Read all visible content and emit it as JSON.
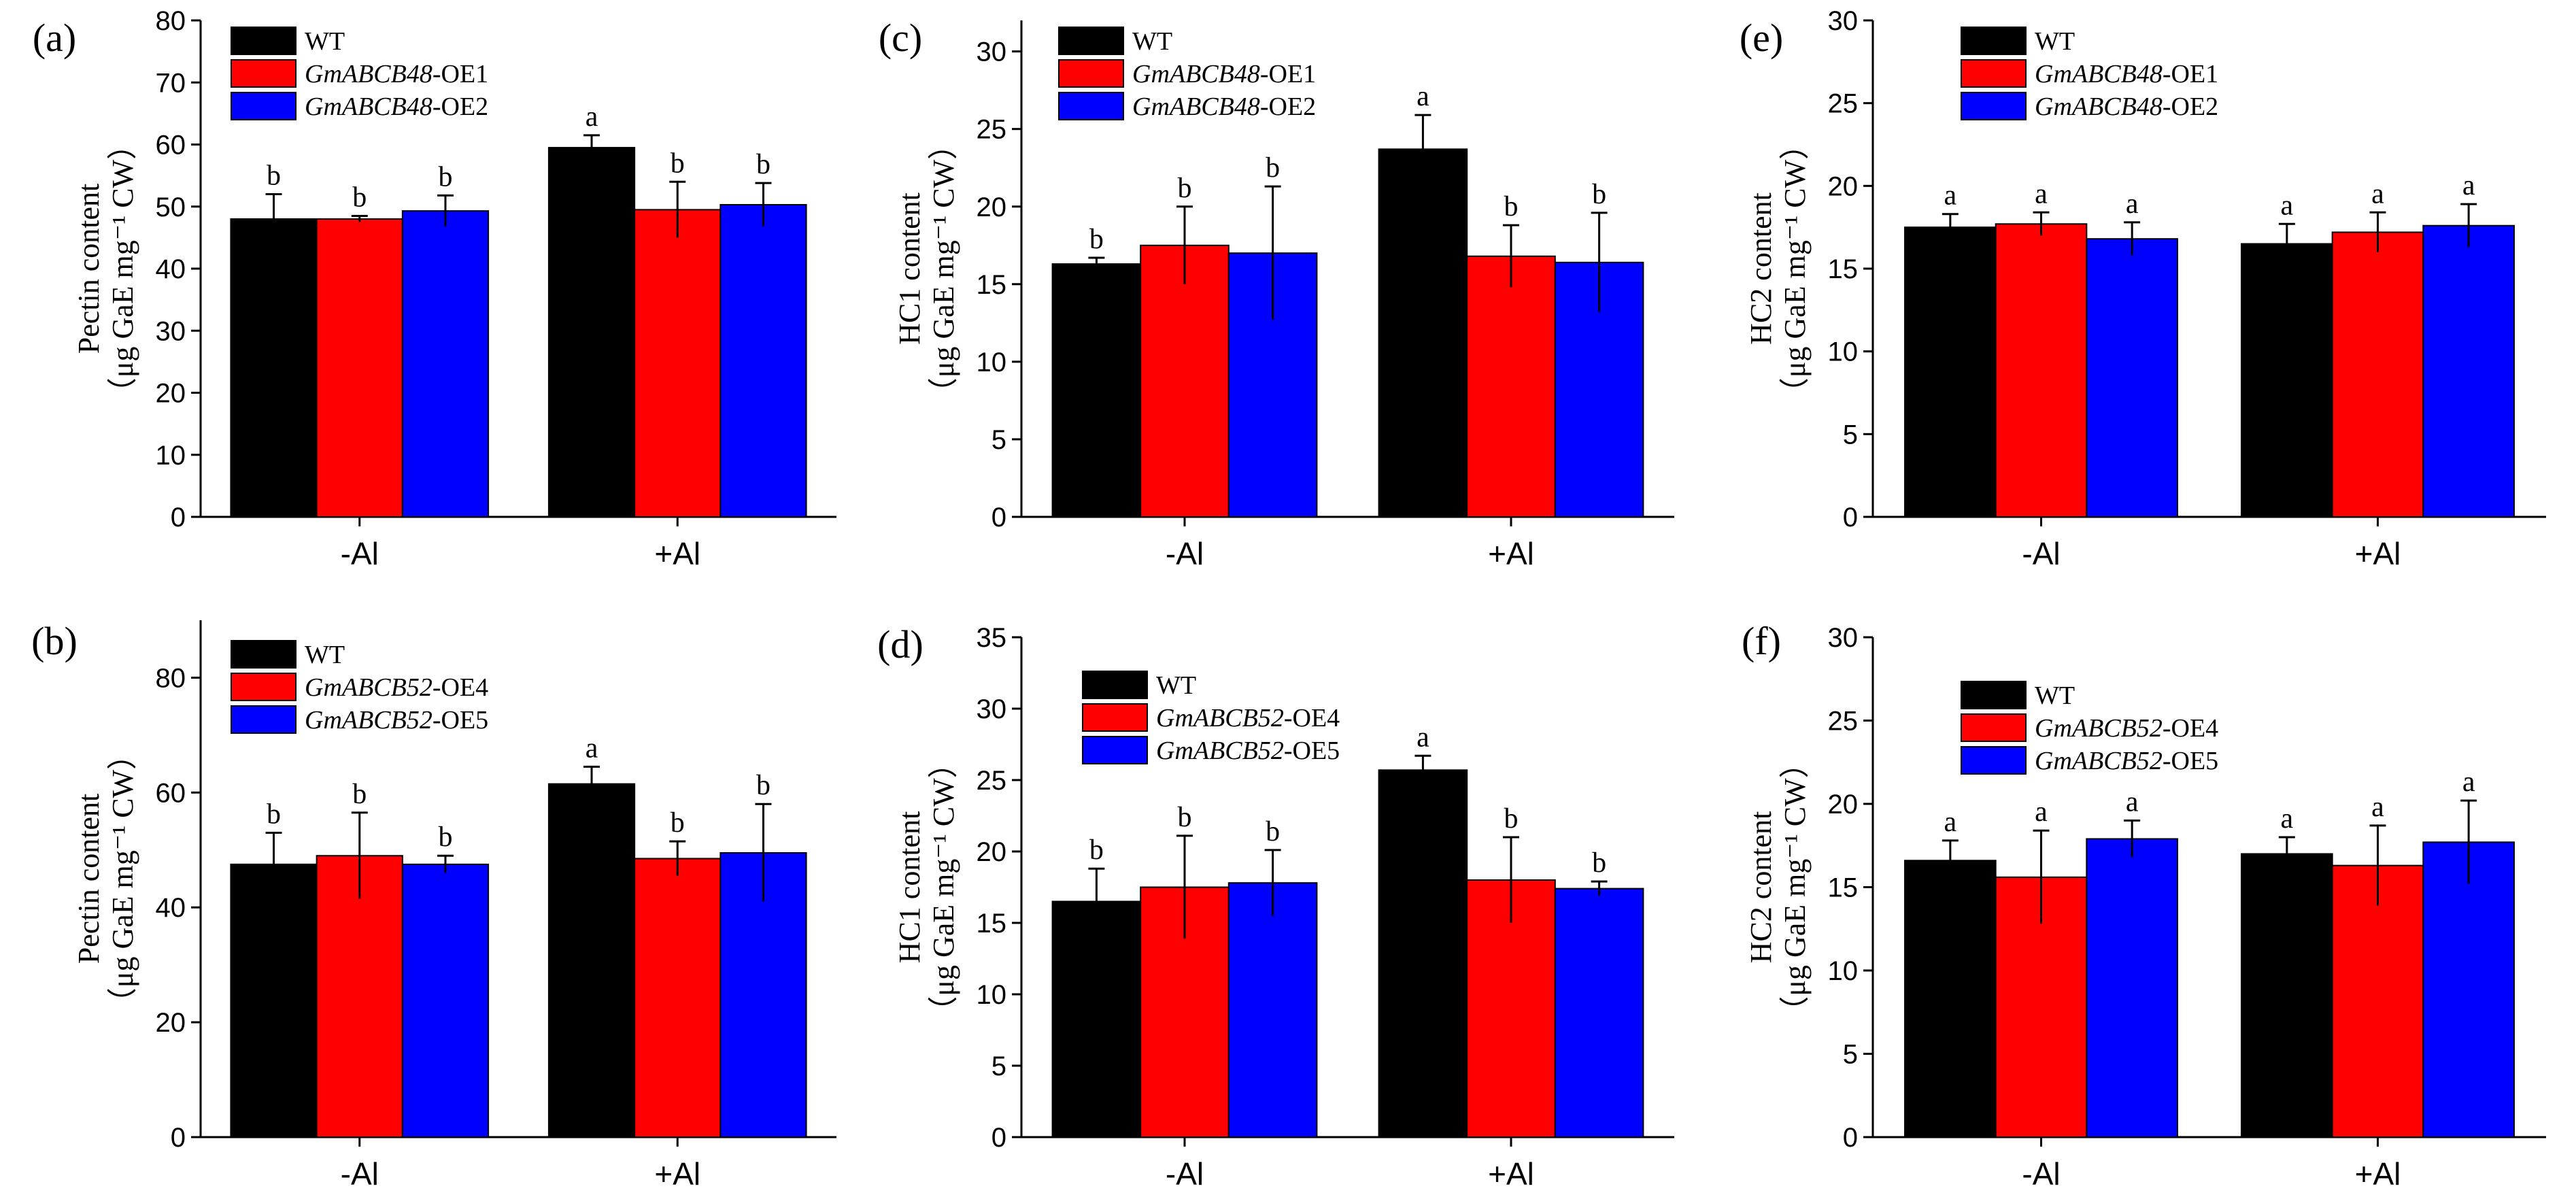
{
  "colors": {
    "WT": "#000000",
    "OE_a": "#ff0000",
    "OE_b": "#0000ff"
  },
  "chart_data": [
    {
      "id": "a",
      "panel_label": "(a)",
      "type": "bar",
      "ylabel_line1": "Pectin content",
      "ylabel_line2": "（μg GaE mg⁻¹ CW）",
      "ylim": [
        0,
        80
      ],
      "yticks": [
        0,
        10,
        20,
        30,
        40,
        50,
        60,
        70,
        80
      ],
      "categories": [
        "-Al",
        "+Al"
      ],
      "series": [
        {
          "name": "WT",
          "gene": "",
          "suffix": "WT",
          "values": [
            48,
            59.5
          ],
          "errors": [
            4,
            2
          ],
          "letters": [
            "b",
            "a"
          ]
        },
        {
          "name": "GmABCB48-OE1",
          "gene": "GmABCB48",
          "suffix": "-OE1",
          "values": [
            48,
            49.5
          ],
          "errors": [
            0.5,
            4.5
          ],
          "letters": [
            "b",
            "b"
          ]
        },
        {
          "name": "GmABCB48-OE2",
          "gene": "GmABCB48",
          "suffix": "-OE2",
          "values": [
            49.3,
            50.3
          ],
          "errors": [
            2.5,
            3.5
          ],
          "letters": [
            "b",
            "b"
          ]
        }
      ]
    },
    {
      "id": "c",
      "panel_label": "(c)",
      "type": "bar",
      "ylabel_line1": "HC1 content",
      "ylabel_line2": "（μg GaE mg⁻¹ CW）",
      "ylim": [
        0,
        32
      ],
      "yticks": [
        0,
        5,
        10,
        15,
        20,
        25,
        30
      ],
      "categories": [
        "-Al",
        "+Al"
      ],
      "series": [
        {
          "name": "WT",
          "gene": "",
          "suffix": "WT",
          "values": [
            16.3,
            23.7
          ],
          "errors": [
            0.4,
            2.2
          ],
          "letters": [
            "b",
            "a"
          ]
        },
        {
          "name": "GmABCB48-OE1",
          "gene": "GmABCB48",
          "suffix": "-OE1",
          "values": [
            17.5,
            16.8
          ],
          "errors": [
            2.5,
            2
          ],
          "letters": [
            "b",
            "b"
          ]
        },
        {
          "name": "GmABCB48-OE2",
          "gene": "GmABCB48",
          "suffix": "-OE2",
          "values": [
            17,
            16.4
          ],
          "errors": [
            4.3,
            3.2
          ],
          "letters": [
            "b",
            "b"
          ]
        }
      ]
    },
    {
      "id": "e",
      "panel_label": "(e)",
      "type": "bar",
      "ylabel_line1": "HC2 content",
      "ylabel_line2": "（μg GaE mg⁻¹ CW）",
      "ylim": [
        0,
        30
      ],
      "yticks": [
        0,
        5,
        10,
        15,
        20,
        25,
        30
      ],
      "categories": [
        "-Al",
        "+Al"
      ],
      "series": [
        {
          "name": "WT",
          "gene": "",
          "suffix": "WT",
          "values": [
            17.5,
            16.5
          ],
          "errors": [
            0.8,
            1.2
          ],
          "letters": [
            "a",
            "a"
          ]
        },
        {
          "name": "GmABCB48-OE1",
          "gene": "GmABCB48",
          "suffix": "-OE1",
          "values": [
            17.7,
            17.2
          ],
          "errors": [
            0.7,
            1.2
          ],
          "letters": [
            "a",
            "a"
          ]
        },
        {
          "name": "GmABCB48-OE2",
          "gene": "GmABCB48",
          "suffix": "-OE2",
          "values": [
            16.8,
            17.6
          ],
          "errors": [
            1,
            1.3
          ],
          "letters": [
            "a",
            "a"
          ]
        }
      ]
    },
    {
      "id": "b",
      "panel_label": "(b)",
      "type": "bar",
      "ylabel_line1": "Pectin content",
      "ylabel_line2": "（μg GaE mg⁻¹ CW）",
      "ylim": [
        0,
        90
      ],
      "yticks": [
        0,
        20,
        40,
        60,
        80
      ],
      "categories": [
        "-Al",
        "+Al"
      ],
      "series": [
        {
          "name": "WT",
          "gene": "",
          "suffix": "WT",
          "values": [
            47.5,
            61.5
          ],
          "errors": [
            5.5,
            3
          ],
          "letters": [
            "b",
            "a"
          ]
        },
        {
          "name": "GmABCB52-OE4",
          "gene": "GmABCB52",
          "suffix": "-OE4",
          "values": [
            49,
            48.5
          ],
          "errors": [
            7.5,
            3
          ],
          "letters": [
            "b",
            "b"
          ]
        },
        {
          "name": "GmABCB52-OE5",
          "gene": "GmABCB52",
          "suffix": "-OE5",
          "values": [
            47.5,
            49.5
          ],
          "errors": [
            1.5,
            8.5
          ],
          "letters": [
            "b",
            "b"
          ]
        }
      ]
    },
    {
      "id": "d",
      "panel_label": "(d)",
      "type": "bar",
      "ylabel_line1": "HC1 content",
      "ylabel_line2": "（μg GaE mg⁻¹ CW）",
      "ylim": [
        0,
        35
      ],
      "yticks": [
        0,
        5,
        10,
        15,
        20,
        25,
        30,
        35
      ],
      "categories": [
        "-Al",
        "+Al"
      ],
      "series": [
        {
          "name": "WT",
          "gene": "",
          "suffix": "WT",
          "values": [
            16.5,
            25.7
          ],
          "errors": [
            2.3,
            1
          ],
          "letters": [
            "b",
            "a"
          ]
        },
        {
          "name": "GmABCB52-OE4",
          "gene": "GmABCB52",
          "suffix": "-OE4",
          "values": [
            17.5,
            18
          ],
          "errors": [
            3.6,
            3
          ],
          "letters": [
            "b",
            "b"
          ]
        },
        {
          "name": "GmABCB52-OE5",
          "gene": "GmABCB52",
          "suffix": "-OE5",
          "values": [
            17.8,
            17.4
          ],
          "errors": [
            2.3,
            0.5
          ],
          "letters": [
            "b",
            "b"
          ]
        }
      ]
    },
    {
      "id": "f",
      "panel_label": "(f)",
      "type": "bar",
      "ylabel_line1": "HC2 content",
      "ylabel_line2": "（μg GaE mg⁻¹ CW）",
      "ylim": [
        0,
        30
      ],
      "yticks": [
        0,
        5,
        10,
        15,
        20,
        25,
        30
      ],
      "categories": [
        "-Al",
        "+Al"
      ],
      "series": [
        {
          "name": "WT",
          "gene": "",
          "suffix": "WT",
          "values": [
            16.6,
            17
          ],
          "errors": [
            1.2,
            1
          ],
          "letters": [
            "a",
            "a"
          ]
        },
        {
          "name": "GmABCB52-OE4",
          "gene": "GmABCB52",
          "suffix": "-OE4",
          "values": [
            15.6,
            16.3
          ],
          "errors": [
            2.8,
            2.4
          ],
          "letters": [
            "a",
            "a"
          ]
        },
        {
          "name": "GmABCB52-OE5",
          "gene": "GmABCB52",
          "suffix": "-OE5",
          "values": [
            17.9,
            17.7
          ],
          "errors": [
            1.1,
            2.5
          ],
          "letters": [
            "a",
            "a"
          ]
        }
      ]
    }
  ]
}
